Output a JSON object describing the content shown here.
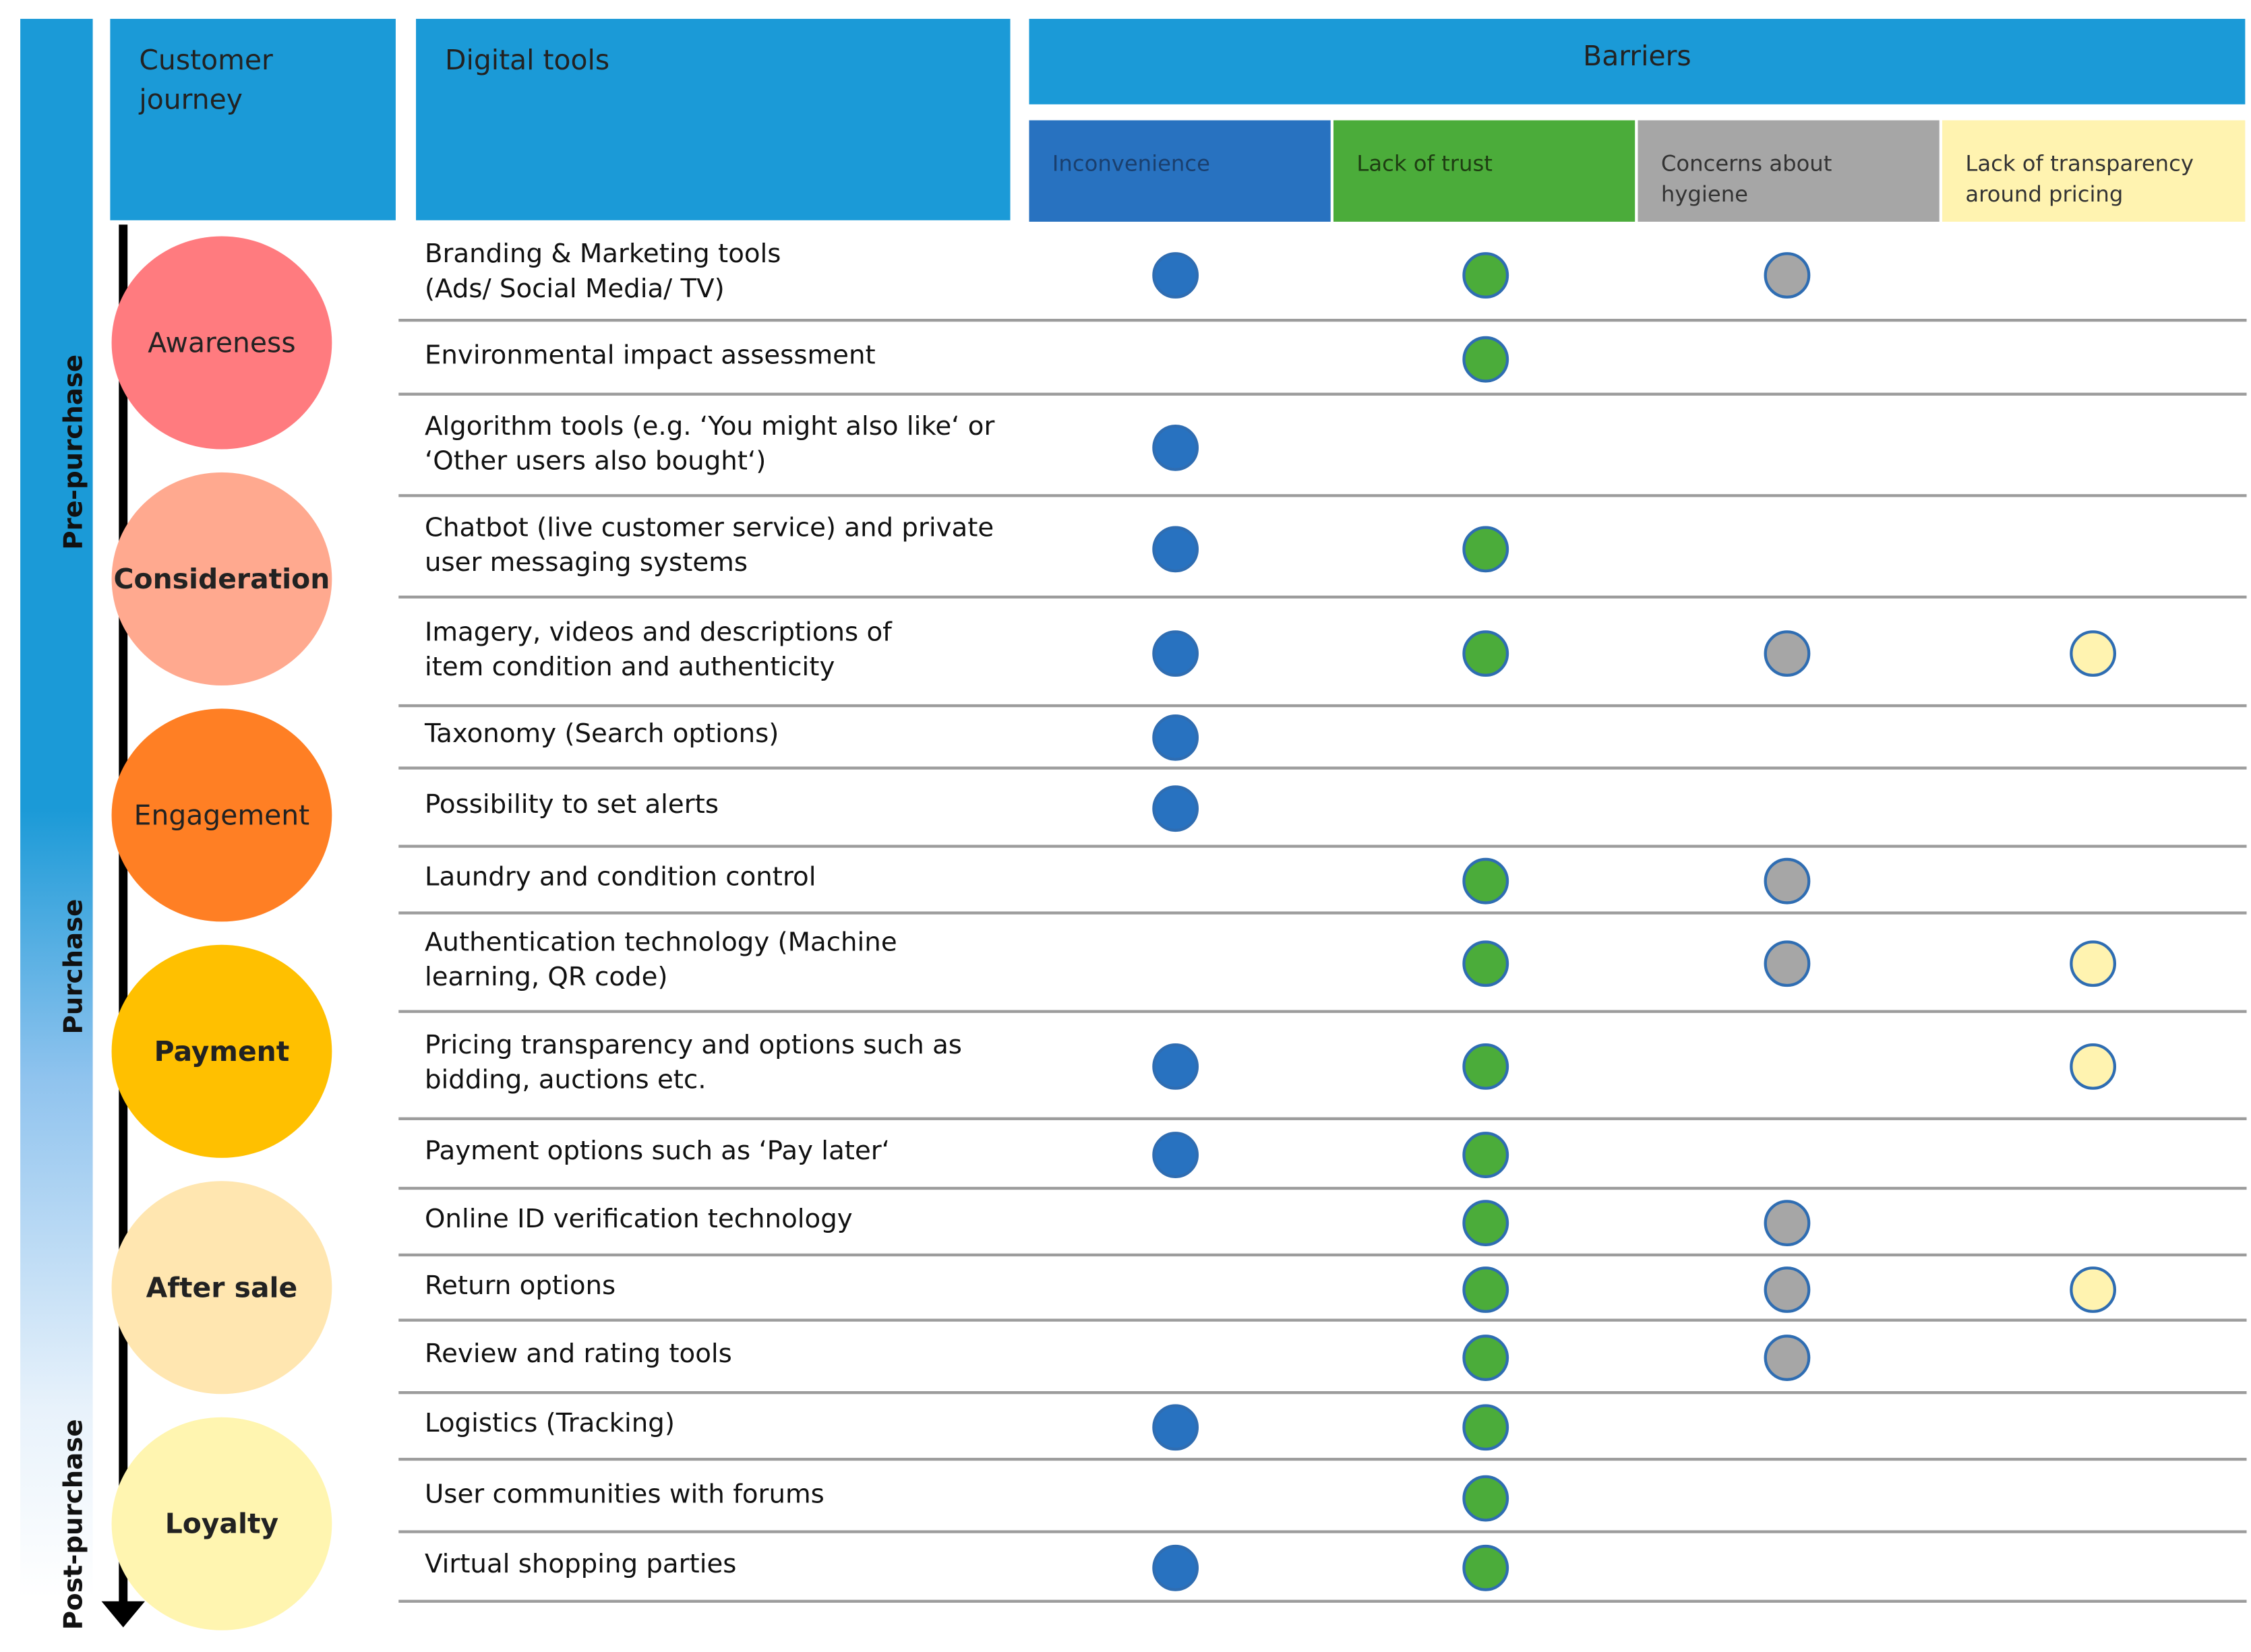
{
  "headers": {
    "customer_journey": "Customer\n journey",
    "digital_tools": "Digital tools",
    "barriers": "Barriers"
  },
  "barriers": [
    {
      "label": "Inconvenience",
      "color": "#2872c0",
      "text_color": "#1a3f6e"
    },
    {
      "label": "Lack of trust",
      "color": "#4bac3a",
      "text_color": "#1e3d12"
    },
    {
      "label": "Concerns about\nhygiene",
      "color": "#a6a6a6",
      "text_color": "#333333"
    },
    {
      "label": "Lack of transparency\naround pricing",
      "color": "#fff3b0",
      "text_color": "#333333"
    }
  ],
  "phases": [
    "Pre-purchase",
    "Purchase",
    "Post-purchase"
  ],
  "stages": [
    {
      "label": "Awareness",
      "color": "#ff7b7f",
      "bold": false
    },
    {
      "label": "Consideration",
      "color": "#ffa98f",
      "bold": true
    },
    {
      "label": "Engagement",
      "color": "#ff7f24",
      "bold": false
    },
    {
      "label": "Payment",
      "color": "#ffc000",
      "bold": true
    },
    {
      "label": "After sale",
      "color": "#ffe6b0",
      "bold": true
    },
    {
      "label": "Loyalty",
      "color": "#fff5b0",
      "bold": true
    }
  ],
  "dot_colors": [
    "#2872c0",
    "#4bac3a",
    "#a6a6a6",
    "#fff3b0"
  ],
  "tools": [
    {
      "label": "Branding & Marketing tools\n(Ads/ Social Media/ TV)",
      "barriers": [
        true,
        true,
        true,
        false
      ]
    },
    {
      "label": "Environmental impact assessment",
      "barriers": [
        false,
        true,
        false,
        false
      ]
    },
    {
      "label": "Algorithm tools (e.g. ‘You might also like‘ or\n ‘Other users also bought‘)",
      "barriers": [
        true,
        false,
        false,
        false
      ]
    },
    {
      "label": "Chatbot (live customer service) and private\nuser messaging systems",
      "barriers": [
        true,
        true,
        false,
        false
      ]
    },
    {
      "label": "Imagery, videos and descriptions of\nitem condition and authenticity",
      "barriers": [
        true,
        true,
        true,
        true
      ]
    },
    {
      "label": "Taxonomy (Search options)",
      "barriers": [
        true,
        false,
        false,
        false
      ]
    },
    {
      "label": "Possibility to set alerts",
      "barriers": [
        true,
        false,
        false,
        false
      ]
    },
    {
      "label": "Laundry and condition control",
      "barriers": [
        false,
        true,
        true,
        false
      ]
    },
    {
      "label": "Authentication technology (Machine\nlearning, QR code)",
      "barriers": [
        false,
        true,
        true,
        true
      ]
    },
    {
      "label": "Pricing transparency and options such as\nbidding, auctions etc.",
      "barriers": [
        true,
        true,
        false,
        true
      ]
    },
    {
      "label": "Payment options such as ‘Pay later‘",
      "barriers": [
        true,
        true,
        false,
        false
      ]
    },
    {
      "label": "Online ID verification technology",
      "barriers": [
        false,
        true,
        true,
        false
      ]
    },
    {
      "label": "Return options",
      "barriers": [
        false,
        true,
        true,
        true
      ]
    },
    {
      "label": "Review and rating tools",
      "barriers": [
        false,
        true,
        true,
        false
      ]
    },
    {
      "label": "Logistics (Tracking)",
      "barriers": [
        true,
        true,
        false,
        false
      ]
    },
    {
      "label": "User communities with forums",
      "barriers": [
        false,
        true,
        false,
        false
      ]
    },
    {
      "label": "Virtual shopping parties",
      "barriers": [
        true,
        true,
        false,
        false
      ]
    }
  ]
}
